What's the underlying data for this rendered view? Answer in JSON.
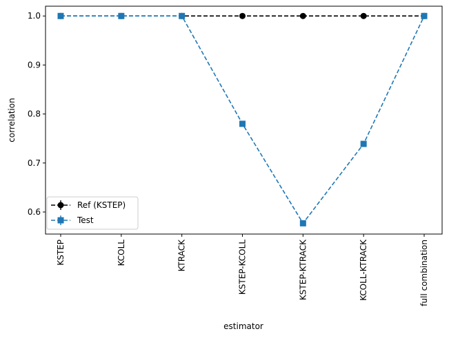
{
  "chart_data": {
    "type": "line",
    "title": "",
    "xlabel": "estimator",
    "ylabel": "correlation",
    "categories": [
      "KSTEP",
      "KCOLL",
      "KTRACK",
      "KSTEP-KCOLL",
      "KSTEP-KTRACK",
      "KCOLL-KTRACK",
      "full combination"
    ],
    "ylim": [
      0.555,
      1.02
    ],
    "yticks": [
      0.6,
      0.7,
      0.8,
      0.9,
      1.0
    ],
    "ytick_labels": [
      "0.6",
      "0.7",
      "0.8",
      "0.9",
      "1.0"
    ],
    "grid": false,
    "legend_position": "lower-left",
    "series": [
      {
        "name": "Ref (KSTEP)",
        "color": "#000000",
        "marker": "circle",
        "linestyle": "dashed",
        "values": [
          1.0,
          1.0,
          1.0,
          1.0,
          1.0,
          1.0,
          1.0
        ]
      },
      {
        "name": "Test",
        "color": "#1f77b4",
        "marker": "square",
        "linestyle": "dashed",
        "values": [
          1.0,
          1.0,
          1.0,
          0.78,
          0.577,
          0.739,
          1.0
        ]
      }
    ]
  }
}
